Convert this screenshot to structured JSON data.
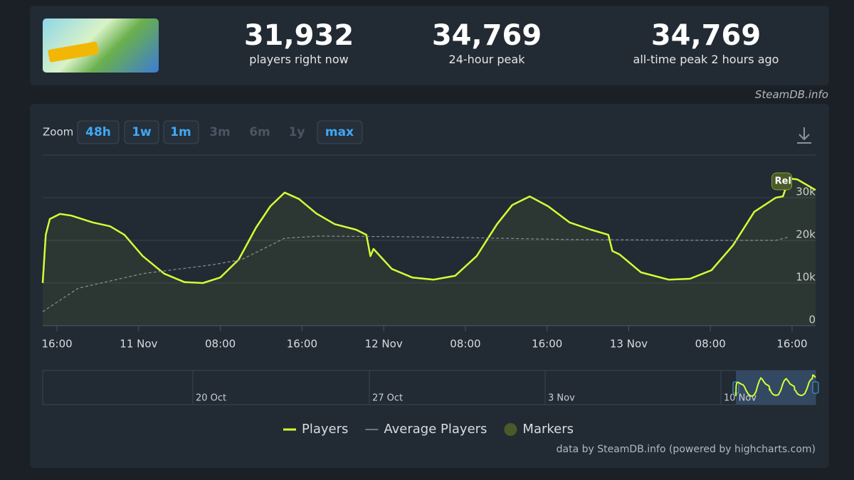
{
  "stats": [
    {
      "value": "31,932",
      "label": "players right now"
    },
    {
      "value": "34,769",
      "label": "24-hour peak"
    },
    {
      "value": "34,769",
      "label": "all-time peak 2 hours ago"
    }
  ],
  "credit": "SteamDB.info",
  "zoom": {
    "label": "Zoom",
    "buttons": [
      "48h",
      "1w",
      "1m",
      "3m",
      "6m",
      "1y",
      "max"
    ]
  },
  "chart_data": {
    "type": "line",
    "xlim": [
      14.6,
      90.3
    ],
    "xticks": [
      {
        "value": 16,
        "label": "16:00"
      },
      {
        "value": 24,
        "label": "11 Nov"
      },
      {
        "value": 32,
        "label": "08:00"
      },
      {
        "value": 40,
        "label": "16:00"
      },
      {
        "value": 48,
        "label": "12 Nov"
      },
      {
        "value": 56,
        "label": "08:00"
      },
      {
        "value": 64,
        "label": "16:00"
      },
      {
        "value": 72,
        "label": "13 Nov"
      },
      {
        "value": 80,
        "label": "08:00"
      },
      {
        "value": 88,
        "label": "16:00"
      }
    ],
    "ylim": [
      0,
      40000
    ],
    "yticks": [
      0,
      {
        "value": 10000,
        "label": "10k"
      },
      {
        "value": 20000,
        "label": "20k"
      },
      {
        "value": 30000,
        "label": "30k"
      }
    ],
    "grid": true,
    "series": [
      {
        "name": "Players",
        "color": "#d4ff36",
        "x": [
          14.6,
          14.9,
          15.3,
          16.3,
          17.4,
          19.5,
          21.2,
          22.6,
          24.4,
          26.5,
          28.5,
          30.3,
          32.0,
          33.8,
          35.5,
          36.9,
          38.3,
          39.7,
          41.4,
          43.2,
          45.3,
          46.3,
          46.7,
          47.0,
          48.8,
          50.8,
          52.9,
          55.0,
          57.1,
          59.1,
          60.6,
          62.3,
          64.1,
          66.2,
          68.3,
          70.0,
          70.4,
          71.1,
          73.2,
          75.9,
          78.0,
          80.1,
          82.2,
          84.3,
          86.4,
          87.1,
          87.7,
          88.5,
          90.3
        ],
        "values": [
          10000,
          21300,
          25000,
          26200,
          25800,
          24200,
          23300,
          21300,
          16300,
          12200,
          10200,
          10000,
          11300,
          15500,
          23000,
          28000,
          31200,
          29700,
          26300,
          23800,
          22500,
          21300,
          16300,
          18000,
          13300,
          11300,
          10800,
          11700,
          16300,
          23800,
          28300,
          30300,
          28000,
          24200,
          22500,
          21300,
          17500,
          16700,
          12500,
          10800,
          11000,
          13000,
          18800,
          26700,
          30000,
          30300,
          34500,
          34300,
          31800
        ]
      },
      {
        "name": "Average Players",
        "color": "#8a9099",
        "x": [
          14.6,
          18.1,
          24.4,
          31.3,
          34.1,
          38.3,
          41.7,
          52.2,
          66.1,
          80.1,
          86.4,
          87.7
        ],
        "values": [
          3300,
          8800,
          12200,
          14300,
          15500,
          20500,
          21000,
          20800,
          20200,
          20000,
          20000,
          20800
        ]
      }
    ],
    "markers": {
      "name": "Markers",
      "color": "#4a5a2a",
      "points": [
        {
          "x": 87,
          "y": 34000,
          "text": "Rel"
        }
      ]
    },
    "navigator": {
      "labels": [
        "20 Oct",
        "27 Oct",
        "3 Nov",
        "10 Nov"
      ]
    },
    "footer": "data by SteamDB.info (powered by highcharts.com)"
  }
}
